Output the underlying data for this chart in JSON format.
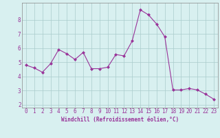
{
  "x": [
    0,
    1,
    2,
    3,
    4,
    5,
    6,
    7,
    8,
    9,
    10,
    11,
    12,
    13,
    14,
    15,
    16,
    17,
    18,
    19,
    20,
    21,
    22,
    23
  ],
  "y": [
    4.8,
    4.6,
    4.3,
    4.9,
    5.9,
    5.6,
    5.2,
    5.7,
    4.55,
    4.55,
    4.65,
    5.55,
    5.45,
    6.5,
    8.7,
    8.35,
    7.7,
    6.8,
    3.05,
    3.05,
    3.15,
    3.05,
    2.75,
    2.4
  ],
  "line_color": "#993399",
  "marker": "D",
  "marker_size": 2.0,
  "bg_color": "#d8f0f0",
  "grid_color": "#aacccc",
  "xlabel": "Windchill (Refroidissement éolien,°C)",
  "xlabel_color": "#993399",
  "tick_color": "#993399",
  "spine_color": "#888888",
  "xlim": [
    -0.5,
    23.5
  ],
  "ylim": [
    1.8,
    9.2
  ],
  "yticks": [
    2,
    3,
    4,
    5,
    6,
    7,
    8
  ],
  "xticks": [
    0,
    1,
    2,
    3,
    4,
    5,
    6,
    7,
    8,
    9,
    10,
    11,
    12,
    13,
    14,
    15,
    16,
    17,
    18,
    19,
    20,
    21,
    22,
    23
  ],
  "tick_fontsize": 5.5,
  "xlabel_fontsize": 5.5,
  "linewidth": 0.8
}
